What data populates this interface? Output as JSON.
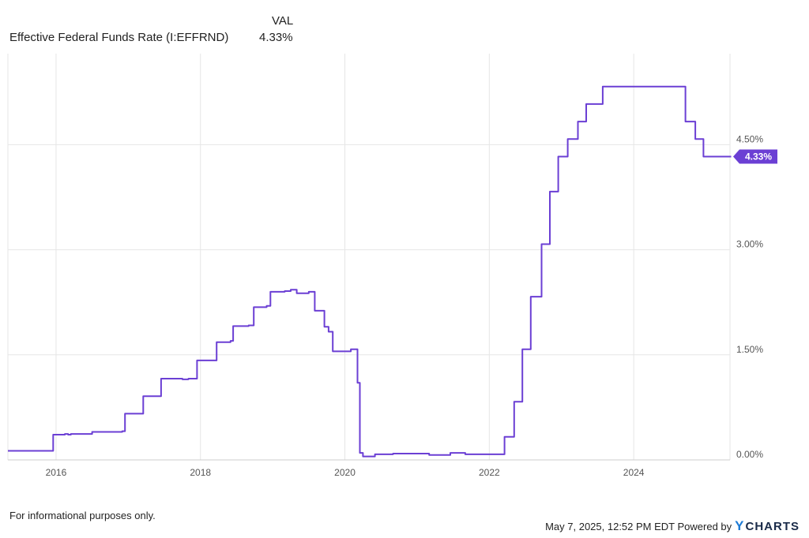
{
  "legend": {
    "header": "VAL",
    "series_name": "Effective Federal Funds Rate (I:EFFRND)",
    "series_value": "4.33%"
  },
  "footer": {
    "disclaimer": "For informational purposes only.",
    "timestamp": "May 7, 2025, 12:52 PM EDT Powered by",
    "brand": "CHARTS",
    "brand_mark": "Y"
  },
  "colors": {
    "line": "#6b3fd4",
    "grid": "#e6e6e6",
    "axis_text": "#555555"
  },
  "chart_data": {
    "type": "line",
    "title": "",
    "xlabel": "",
    "ylabel": "",
    "x_ticks": [
      "2016",
      "2018",
      "2020",
      "2022",
      "2024"
    ],
    "y_ticks": [
      "0.00%",
      "1.50%",
      "3.00%",
      "4.50%"
    ],
    "xlim": [
      "2015-05",
      "2025-05"
    ],
    "ylim": [
      0,
      5.8
    ],
    "y_axis_side": "right",
    "grid": true,
    "last_value_label": "4.33%",
    "series": [
      {
        "name": "Effective Federal Funds Rate (I:EFFRND)",
        "x": [
          "2015-05-01",
          "2015-12-10",
          "2015-12-17",
          "2016-01-15",
          "2016-02-15",
          "2016-03-01",
          "2016-03-15",
          "2016-06-01",
          "2016-07-01",
          "2016-08-01",
          "2016-12-01",
          "2016-12-15",
          "2017-03-01",
          "2017-03-16",
          "2017-06-01",
          "2017-06-15",
          "2017-09-01",
          "2017-10-01",
          "2017-11-01",
          "2017-12-01",
          "2017-12-14",
          "2018-02-01",
          "2018-03-22",
          "2018-06-01",
          "2018-06-14",
          "2018-09-01",
          "2018-09-27",
          "2018-12-01",
          "2018-12-20",
          "2019-03-01",
          "2019-04-01",
          "2019-05-01",
          "2019-06-01",
          "2019-07-01",
          "2019-08-01",
          "2019-09-19",
          "2019-10-10",
          "2019-10-31",
          "2019-12-01",
          "2020-01-01",
          "2020-02-01",
          "2020-03-04",
          "2020-03-16",
          "2020-04-01",
          "2020-06-01",
          "2020-09-01",
          "2020-12-01",
          "2021-03-01",
          "2021-06-17",
          "2021-09-01",
          "2021-12-01",
          "2022-03-17",
          "2022-05-05",
          "2022-06-16",
          "2022-07-28",
          "2022-09-22",
          "2022-11-03",
          "2022-12-15",
          "2023-02-02",
          "2023-03-23",
          "2023-05-04",
          "2023-07-27",
          "2024-09-19",
          "2024-11-08",
          "2024-12-19",
          "2025-05-07"
        ],
        "values": [
          0.13,
          0.13,
          0.36,
          0.36,
          0.37,
          0.36,
          0.37,
          0.37,
          0.4,
          0.4,
          0.41,
          0.66,
          0.66,
          0.91,
          0.91,
          1.16,
          1.16,
          1.15,
          1.16,
          1.16,
          1.42,
          1.42,
          1.68,
          1.7,
          1.91,
          1.92,
          2.18,
          2.2,
          2.4,
          2.41,
          2.43,
          2.38,
          2.38,
          2.4,
          2.13,
          1.9,
          1.83,
          1.55,
          1.55,
          1.55,
          1.58,
          1.1,
          0.1,
          0.05,
          0.08,
          0.09,
          0.09,
          0.07,
          0.1,
          0.08,
          0.08,
          0.33,
          0.83,
          1.58,
          2.33,
          3.08,
          3.83,
          4.33,
          4.58,
          4.83,
          5.08,
          5.33,
          4.83,
          4.58,
          4.33,
          4.33
        ]
      }
    ]
  }
}
